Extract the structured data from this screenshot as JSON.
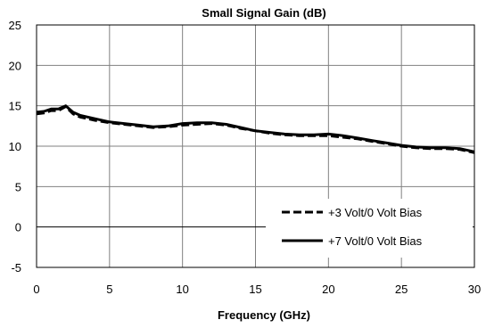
{
  "chart_data": {
    "type": "line",
    "title": "Small Signal Gain (dB)",
    "xlabel": "Frequency (GHz)",
    "ylabel": "",
    "xlim": [
      0,
      30
    ],
    "ylim": [
      -5,
      25
    ],
    "xticks": [
      "0",
      "5",
      "10",
      "15",
      "20",
      "25",
      "30"
    ],
    "yticks": [
      "-5",
      "0",
      "5",
      "10",
      "15",
      "20",
      "25"
    ],
    "grid": true,
    "legend_position": "bottom-right",
    "series": [
      {
        "name": "+3 Volt/0 Volt Bias",
        "style": "dashed",
        "color": "#000000",
        "x": [
          0,
          0.5,
          1,
          1.5,
          2,
          2.5,
          3,
          4,
          5,
          6,
          7,
          8,
          9,
          10,
          11,
          12,
          13,
          14,
          15,
          16,
          17,
          18,
          19,
          20,
          21,
          22,
          23,
          24,
          25,
          26,
          27,
          28,
          29,
          30
        ],
        "values": [
          14.0,
          14.1,
          14.4,
          14.4,
          14.9,
          14.0,
          13.6,
          13.2,
          12.9,
          12.7,
          12.5,
          12.3,
          12.4,
          12.6,
          12.7,
          12.8,
          12.6,
          12.2,
          11.9,
          11.6,
          11.4,
          11.3,
          11.3,
          11.3,
          11.1,
          10.9,
          10.6,
          10.3,
          10.0,
          9.8,
          9.7,
          9.7,
          9.6,
          9.2
        ]
      },
      {
        "name": "+7 Volt/0 Volt Bias",
        "style": "solid",
        "color": "#000000",
        "x": [
          0,
          0.5,
          1,
          1.5,
          2,
          2.5,
          3,
          4,
          5,
          6,
          7,
          8,
          9,
          10,
          11,
          12,
          13,
          14,
          15,
          16,
          17,
          18,
          19,
          20,
          21,
          22,
          23,
          24,
          25,
          26,
          27,
          28,
          29,
          30
        ],
        "values": [
          14.2,
          14.3,
          14.6,
          14.6,
          15.0,
          14.2,
          13.8,
          13.4,
          13.0,
          12.8,
          12.6,
          12.4,
          12.5,
          12.8,
          12.9,
          12.9,
          12.7,
          12.3,
          11.9,
          11.7,
          11.5,
          11.4,
          11.4,
          11.5,
          11.3,
          11.0,
          10.7,
          10.4,
          10.1,
          9.9,
          9.8,
          9.8,
          9.7,
          9.3
        ]
      }
    ]
  }
}
